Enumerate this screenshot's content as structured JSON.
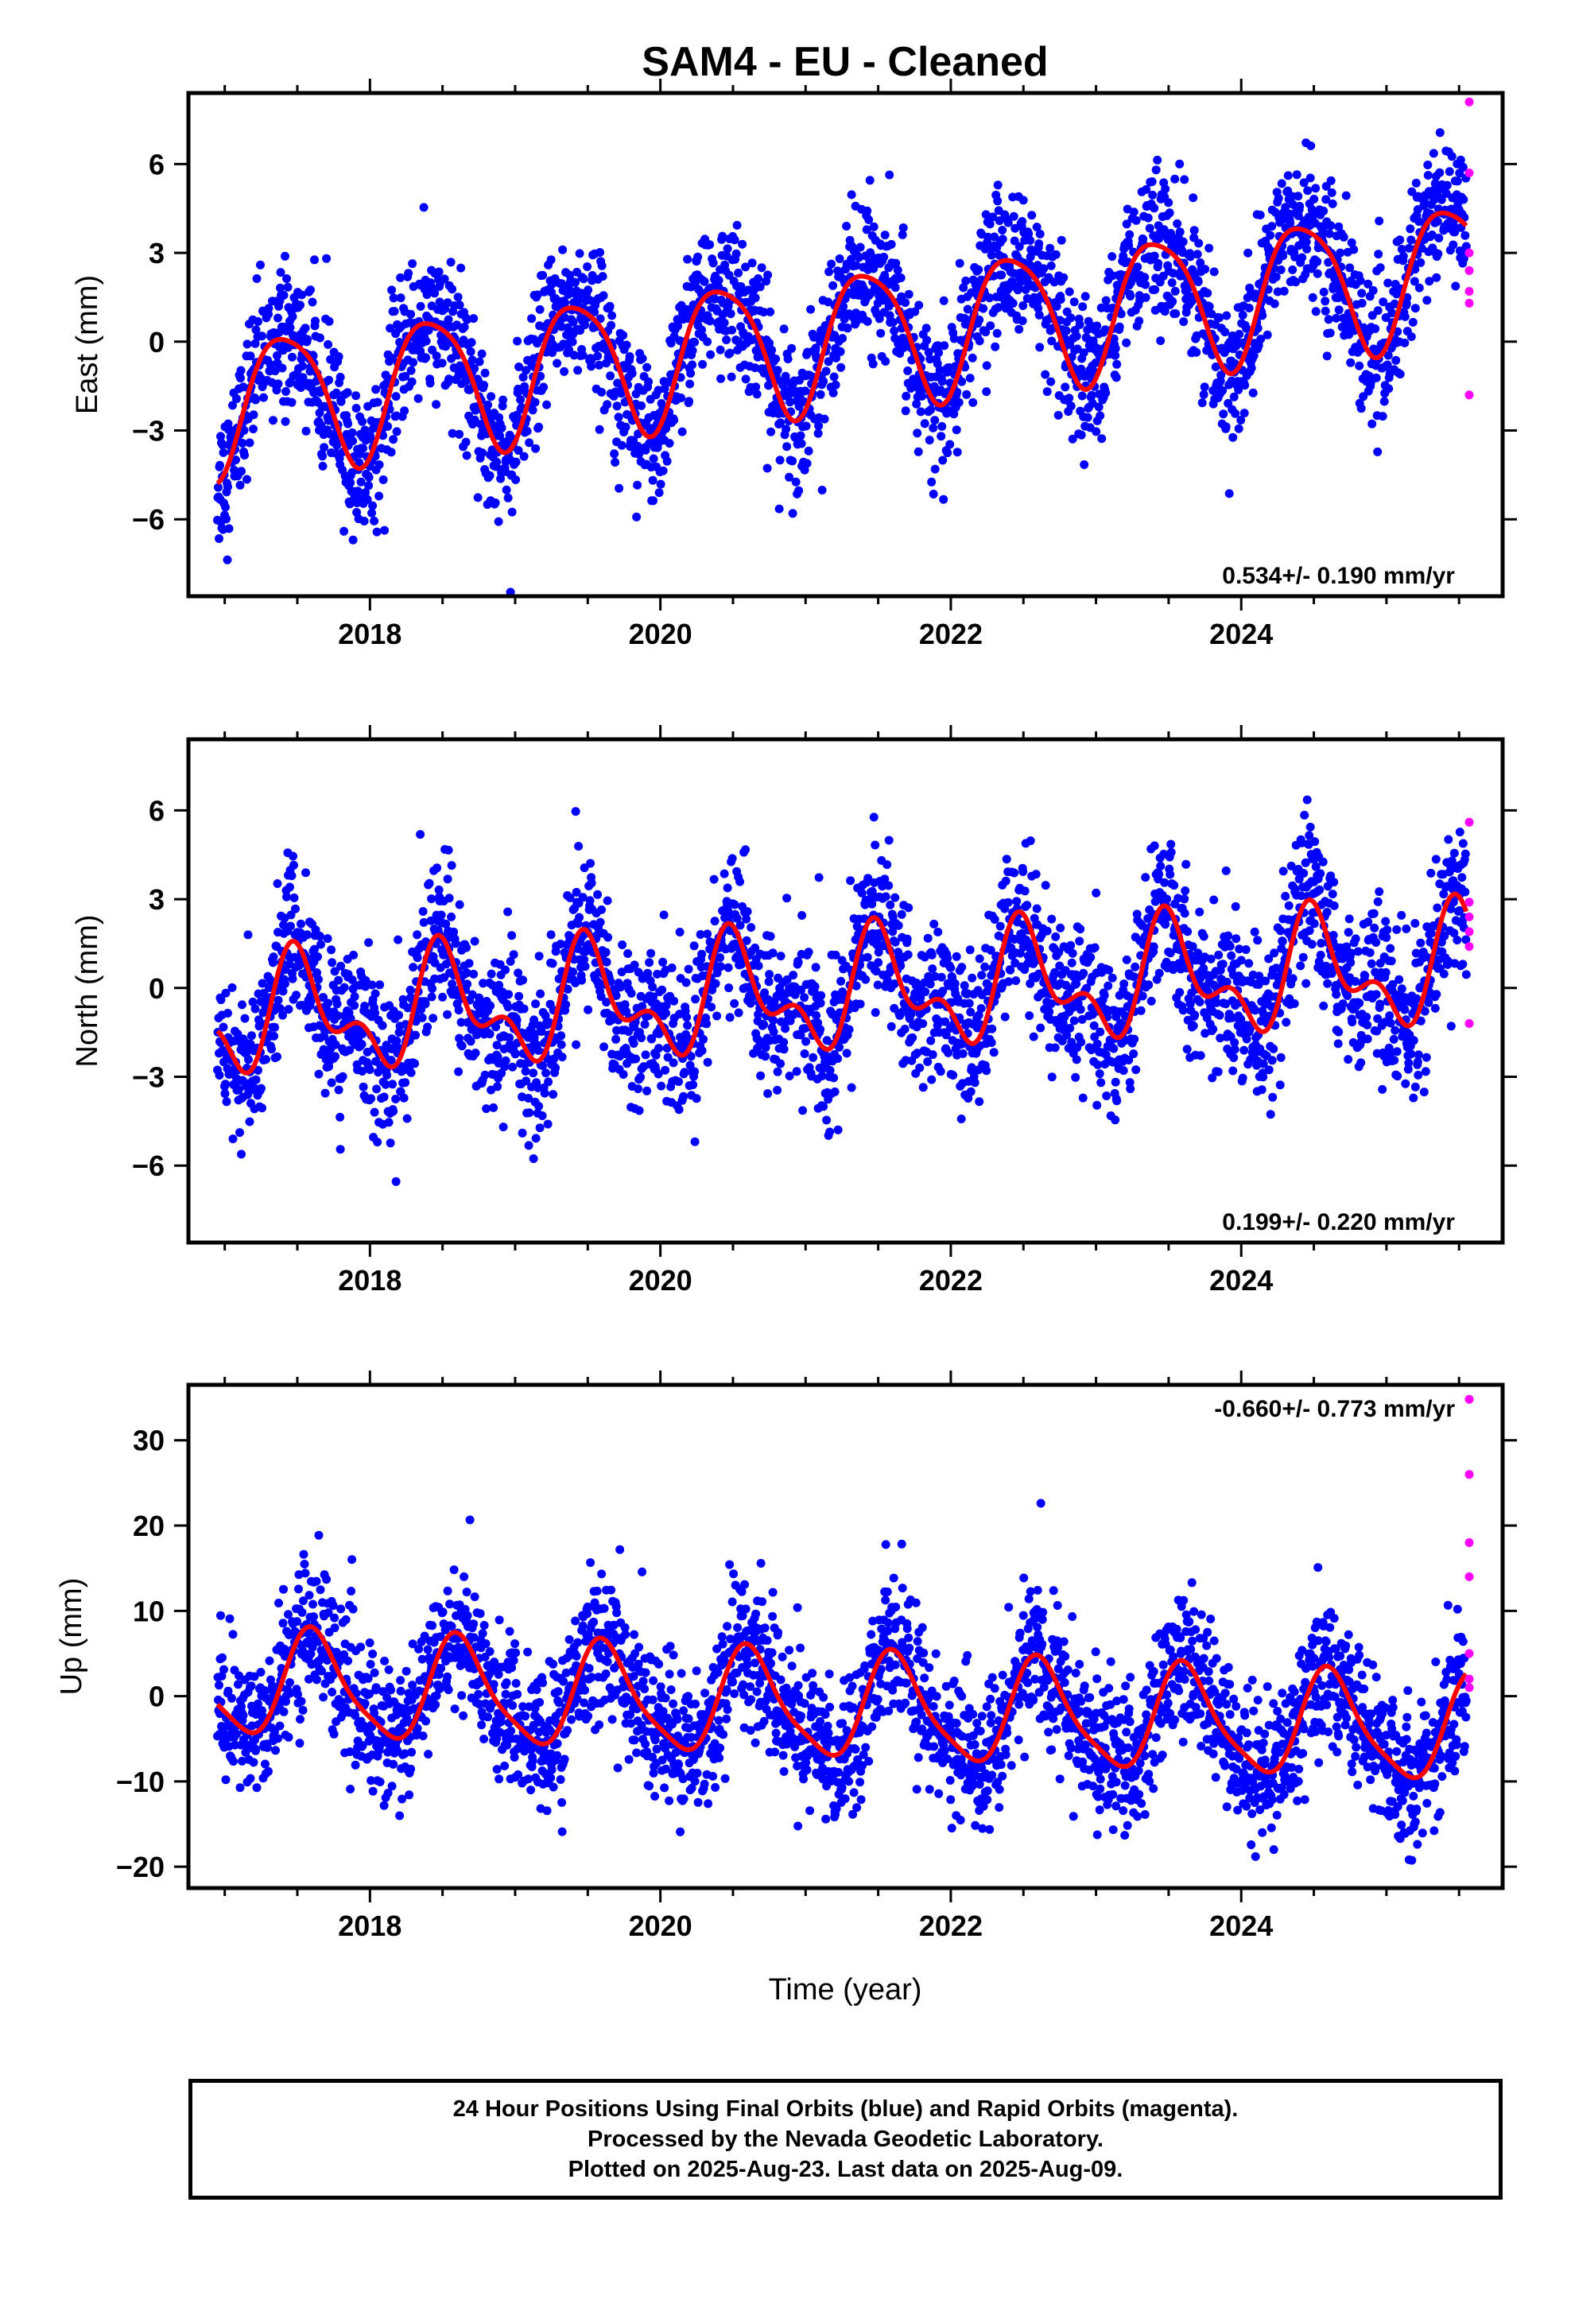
{
  "title": "SAM4  - EU - Cleaned",
  "x_axis_title": "Time (year)",
  "footer": {
    "line1": "24 Hour Positions Using Final Orbits (blue) and Rapid Orbits (magenta).",
    "line2": "Processed by the Nevada Geodetic Laboratory.",
    "line3": "Plotted on 2025-Aug-23. Last data on 2025-Aug-09."
  },
  "colors": {
    "final": "#0000ff",
    "rapid": "#ff00ff",
    "model": "#ff0000",
    "axes": "#000000"
  },
  "chart_data": [
    {
      "type": "scatter",
      "ylabel": "East (mm)",
      "xlim": [
        2016.75,
        2025.8
      ],
      "ylim": [
        -8.6,
        8.4
      ],
      "xticks": [
        2018,
        2020,
        2022,
        2024
      ],
      "yticks": [
        -6,
        -3,
        0,
        3,
        6
      ],
      "ytick_labels": [
        "−6",
        "−3",
        "0",
        "3",
        "6"
      ],
      "rate_text": "0.534+/- 0.190 mm/yr",
      "rate_position": "bottom-right",
      "model": {
        "t0": 2017.0,
        "mean_at_t0": -2.1,
        "trend": 0.534,
        "annual_amp": 2.3,
        "annual_peak": 0.42,
        "semiannual_amp": 0.4,
        "semiannual_peak": 0.2
      },
      "scatter_sd": 1.2,
      "final_series": {
        "name": "Final Orbits",
        "x_start": 2016.95,
        "x_end": 2025.55
      },
      "rapid_points": {
        "name": "Rapid Orbits",
        "x": [
          2025.57,
          2025.57,
          2025.57,
          2025.57,
          2025.57,
          2025.57,
          2025.57
        ],
        "y": [
          8.1,
          5.7,
          2.4,
          1.7,
          1.3,
          -1.8,
          3.0
        ]
      }
    },
    {
      "type": "scatter",
      "ylabel": "North (mm)",
      "xlim": [
        2016.75,
        2025.8
      ],
      "ylim": [
        -8.6,
        8.4
      ],
      "xticks": [
        2018,
        2020,
        2022,
        2024
      ],
      "yticks": [
        -6,
        -3,
        0,
        3,
        6
      ],
      "ytick_labels": [
        "−6",
        "−3",
        "0",
        "3",
        "6"
      ],
      "rate_text": "0.199+/- 0.220 mm/yr",
      "rate_position": "bottom-right",
      "model": {
        "t0": 2017.0,
        "mean_at_t0": -1.0,
        "trend": 0.199,
        "annual_amp": 1.6,
        "annual_peak": 0.52,
        "semiannual_amp": 1.0,
        "semiannual_peak": 0.45
      },
      "scatter_sd": 1.3,
      "final_series": {
        "name": "Final Orbits",
        "x_start": 2016.95,
        "x_end": 2025.55
      },
      "rapid_points": {
        "name": "Rapid Orbits",
        "x": [
          2025.57,
          2025.57,
          2025.57,
          2025.57,
          2025.57,
          2025.57
        ],
        "y": [
          5.6,
          2.4,
          1.9,
          1.4,
          -1.2,
          2.9
        ]
      }
    },
    {
      "type": "scatter",
      "ylabel": "Up (mm)",
      "xlim": [
        2016.75,
        2025.8
      ],
      "ylim": [
        -22.5,
        36.5
      ],
      "xticks": [
        2018,
        2020,
        2022,
        2024
      ],
      "yticks": [
        -20,
        -10,
        0,
        10,
        20,
        30
      ],
      "ytick_labels": [
        "−20",
        "−10",
        "0",
        "10",
        "20",
        "30"
      ],
      "rate_text": "-0.660+/- 0.773 mm/yr",
      "rate_position": "top-right",
      "model": {
        "t0": 2017.0,
        "mean_at_t0": 1.5,
        "trend": -0.66,
        "annual_amp": 6.0,
        "annual_peak": 0.62,
        "semiannual_amp": 1.3,
        "semiannual_peak": 0.55
      },
      "scatter_sd": 4.2,
      "final_series": {
        "name": "Final Orbits",
        "x_start": 2016.95,
        "x_end": 2025.55
      },
      "rapid_points": {
        "name": "Rapid Orbits",
        "x": [
          2025.57,
          2025.57,
          2025.57,
          2025.57,
          2025.57,
          2025.57,
          2025.57
        ],
        "y": [
          34.8,
          26.0,
          18.0,
          14.0,
          5.0,
          2.0,
          1.0
        ]
      }
    }
  ]
}
